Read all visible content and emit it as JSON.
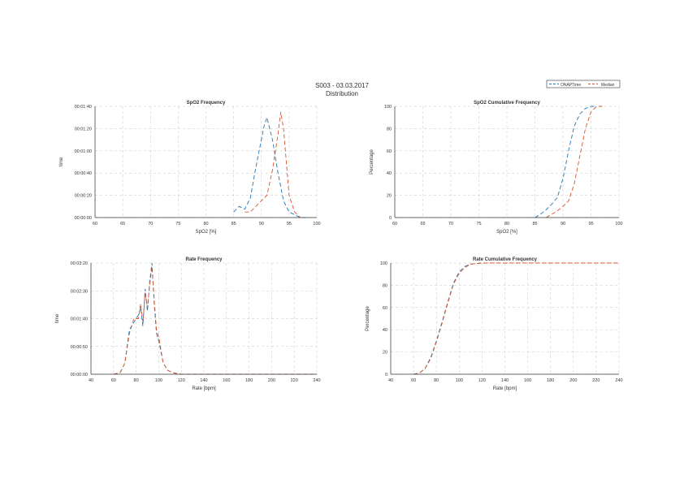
{
  "header": {
    "line1": "S003 - 03.03.2017",
    "line2": "Distribution"
  },
  "legend": {
    "items": [
      {
        "label": "ONAPTime",
        "color": "#1f77b4"
      },
      {
        "label": "Median",
        "color": "#d6542a"
      }
    ]
  },
  "chart_data": [
    {
      "id": "spo2-frequency",
      "type": "line",
      "title": "SpO2 Frequency",
      "xlabel": "SpO2 [%]",
      "ylabel": "time",
      "xlim": [
        60,
        100
      ],
      "ylim": [
        0,
        0.002
      ],
      "xticks": [
        "60",
        "65",
        "70",
        "75",
        "80",
        "85",
        "90",
        "95",
        "100"
      ],
      "yticks": [
        "00:00:00",
        "00:00:20",
        "00:00:40",
        "00:01:00",
        "00:01:20",
        "00:01:40"
      ],
      "grid": true,
      "series": [
        {
          "name": "ONAPTime",
          "color": "#1f77b4",
          "dash": "5,3",
          "x": [
            85,
            86,
            87,
            88,
            89,
            90,
            90.5,
            91,
            92,
            93,
            94,
            95,
            96,
            97,
            98
          ],
          "y": [
            0.0001,
            0.0002,
            0.00015,
            0.00035,
            0.0009,
            0.0014,
            0.00165,
            0.0018,
            0.0014,
            0.0008,
            0.0003,
            0.0001,
            5e-05,
            0,
            0
          ]
        },
        {
          "name": "Median",
          "color": "#d6542a",
          "dash": "5,3",
          "x": [
            87,
            88,
            89,
            90,
            91,
            92,
            93,
            93.5,
            94,
            94.5,
            95,
            96,
            97
          ],
          "y": [
            0.0001,
            0.0001,
            0.0002,
            0.0003,
            0.0004,
            0.00085,
            0.0015,
            0.0019,
            0.0016,
            0.001,
            0.0004,
            0.0001,
            0
          ]
        }
      ]
    },
    {
      "id": "spo2-cumulative",
      "type": "line",
      "title": "SpO2 Cumulative Frequency",
      "xlabel": "SpO2 [%]",
      "ylabel": "Percentage",
      "xlim": [
        60,
        100
      ],
      "ylim": [
        0,
        100
      ],
      "xticks": [
        "60",
        "65",
        "70",
        "75",
        "80",
        "85",
        "90",
        "95",
        "100"
      ],
      "yticks": [
        "0",
        "20",
        "40",
        "60",
        "80",
        "100"
      ],
      "grid": true,
      "series": [
        {
          "name": "ONAPTime",
          "color": "#1f77b4",
          "dash": "5,3",
          "x": [
            85,
            86,
            87,
            88,
            89,
            90,
            91,
            92,
            93,
            94,
            95,
            96
          ],
          "y": [
            0,
            3,
            7,
            12,
            18,
            35,
            60,
            82,
            93,
            98,
            100,
            100
          ]
        },
        {
          "name": "Median",
          "color": "#d6542a",
          "dash": "5,3",
          "x": [
            87,
            88,
            89,
            90,
            91,
            92,
            93,
            94,
            95,
            96,
            97
          ],
          "y": [
            0,
            3,
            6,
            10,
            15,
            30,
            55,
            80,
            95,
            100,
            100
          ]
        }
      ]
    },
    {
      "id": "rate-frequency",
      "type": "line",
      "title": "Rate Frequency",
      "xlabel": "Rate [bpm]",
      "ylabel": "time",
      "xlim": [
        40,
        240
      ],
      "ylim": [
        0,
        0.003
      ],
      "xticks": [
        "40",
        "60",
        "80",
        "100",
        "120",
        "140",
        "160",
        "180",
        "200",
        "220",
        "240"
      ],
      "yticks": [
        "00:00:00",
        "00:00:50",
        "00:01:40",
        "00:02:30",
        "00:03:20"
      ],
      "grid": true,
      "series": [
        {
          "name": "ONAPTime",
          "color": "#1f77b4",
          "dash": "5,3",
          "x": [
            60,
            66,
            70,
            74,
            78,
            82,
            84,
            86,
            88,
            90,
            92,
            94,
            96,
            98,
            100,
            104,
            108,
            114,
            120,
            140,
            240
          ],
          "y": [
            0,
            5e-05,
            0.0003,
            0.0012,
            0.0014,
            0.0016,
            0.0018,
            0.0013,
            0.0023,
            0.0017,
            0.0025,
            0.003,
            0.0019,
            0.0011,
            0.0009,
            0.0003,
            0.0001,
            3e-05,
            0,
            0,
            0
          ]
        },
        {
          "name": "Median",
          "color": "#d6542a",
          "dash": "5,3",
          "x": [
            60,
            66,
            70,
            74,
            78,
            82,
            84,
            86,
            88,
            90,
            92,
            94,
            96,
            98,
            100,
            104,
            108,
            114,
            120,
            140,
            240
          ],
          "y": [
            0,
            5e-05,
            0.0003,
            0.0011,
            0.0015,
            0.0015,
            0.0019,
            0.0014,
            0.0022,
            0.0018,
            0.0024,
            0.0029,
            0.002,
            0.0012,
            0.001,
            0.0003,
            0.0001,
            3e-05,
            0,
            0,
            0
          ]
        }
      ]
    },
    {
      "id": "rate-cumulative",
      "type": "line",
      "title": "Rate Cumulative Frequency",
      "xlabel": "Rate [bpm]",
      "ylabel": "Percentage",
      "xlim": [
        40,
        240
      ],
      "ylim": [
        0,
        100
      ],
      "xticks": [
        "40",
        "60",
        "80",
        "100",
        "120",
        "140",
        "160",
        "180",
        "200",
        "220",
        "240"
      ],
      "yticks": [
        "0",
        "20",
        "40",
        "60",
        "80",
        "100"
      ],
      "grid": true,
      "series": [
        {
          "name": "ONAPTime",
          "color": "#1f77b4",
          "dash": "5,3",
          "x": [
            60,
            65,
            70,
            75,
            80,
            85,
            90,
            95,
            100,
            105,
            110,
            120,
            240
          ],
          "y": [
            0,
            1,
            5,
            15,
            30,
            47,
            65,
            82,
            92,
            97,
            99,
            100,
            100
          ]
        },
        {
          "name": "Median",
          "color": "#d6542a",
          "dash": "5,3",
          "x": [
            60,
            65,
            70,
            75,
            80,
            85,
            90,
            95,
            100,
            105,
            110,
            120,
            240
          ],
          "y": [
            0,
            1,
            5,
            14,
            29,
            46,
            64,
            81,
            91,
            96,
            99,
            100,
            100
          ]
        }
      ]
    }
  ]
}
